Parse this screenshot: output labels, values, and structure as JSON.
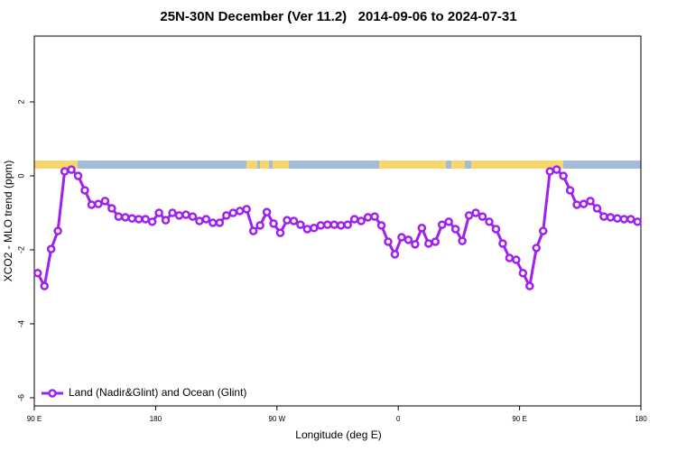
{
  "chart_data": {
    "type": "line",
    "title": "25N-30N December (Ver 11.2)   2014-09-06 to 2024-07-31",
    "x_label": "Longitude (deg E)",
    "y_label": "XCO2 - MLO trend (ppm)",
    "xlim": [
      90,
      540
    ],
    "ylim": [
      -6.22,
      3.78
    ],
    "xticks": [
      {
        "value": 90,
        "label": "90 E"
      },
      180,
      {
        "value": 270,
        "label": "90 W"
      },
      {
        "value": 360,
        "label": "0"
      },
      {
        "value": 450,
        "label": "90 E"
      },
      {
        "value": 540,
        "label": "180"
      }
    ],
    "yticks": [
      -6,
      -4,
      -2,
      0,
      2
    ],
    "legend": "bottom-left",
    "x": [
      92.5,
      97.5,
      102.5,
      107.5,
      112.5,
      117.5,
      122.5,
      127.5,
      132.5,
      137.5,
      142.5,
      147.5,
      152.5,
      157.5,
      162.5,
      167.5,
      172.5,
      177.5,
      182.5,
      187.5,
      192.5,
      197.5,
      202.5,
      207.5,
      212.5,
      217.5,
      222.5,
      227.5,
      232.5,
      237.5,
      242.5,
      247.5,
      252.5,
      257.5,
      262.5,
      267.5,
      272.5,
      277.5,
      282.5,
      287.5,
      292.5,
      297.5,
      302.5,
      307.5,
      312.5,
      317.5,
      322.5,
      327.5,
      332.5,
      337.5,
      342.5,
      347.5,
      352.5,
      357.5,
      362.5,
      367.5,
      372.5,
      377.5,
      382.5,
      387.5,
      392.5,
      397.5,
      402.5,
      407.5,
      412.5,
      417.5,
      422.5,
      427.5,
      432.5,
      437.5,
      442.5,
      447.5,
      452.5,
      457.5,
      462.5,
      467.5,
      472.5,
      477.5,
      482.5,
      487.5,
      492.5,
      497.5,
      502.5,
      507.5,
      512.5,
      517.5,
      522.5,
      527.5,
      532.5,
      537.5
    ],
    "series": [
      {
        "name": "Land (Nadir&Glint) and Ocean (Glint)",
        "color": "#a020f0",
        "values": [
          -2.63,
          -2.98,
          -1.98,
          -1.49,
          0.12,
          0.17,
          0,
          -0.39,
          -0.78,
          -0.76,
          -0.68,
          -0.88,
          -1.1,
          -1.12,
          -1.15,
          -1.17,
          -1.17,
          -1.24,
          -1.0,
          -1.2,
          -1.0,
          -1.07,
          -1.05,
          -1.1,
          -1.22,
          -1.17,
          -1.27,
          -1.27,
          -1.07,
          -1.0,
          -0.95,
          -0.9,
          -1.49,
          -1.34,
          -0.98,
          -1.29,
          -1.54,
          -1.2,
          -1.22,
          -1.32,
          -1.44,
          -1.41,
          -1.34,
          -1.32,
          -1.32,
          -1.34,
          -1.32,
          -1.17,
          -1.22,
          -1.12,
          -1.1,
          -1.34,
          -1.78,
          -2.12,
          -1.66,
          -1.73,
          -1.85,
          -1.41,
          -1.83,
          -1.78,
          -1.32,
          -1.24,
          -1.44,
          -1.76,
          -1.07,
          -1.0,
          -1.1,
          -1.24,
          -1.44,
          -1.83,
          -2.22,
          -2.27,
          -2.63,
          -2.98,
          -1.95,
          -1.49,
          0.12,
          0.17,
          0,
          -0.39,
          -0.78,
          -0.76,
          -0.68,
          -0.88,
          -1.1,
          -1.12,
          -1.15,
          -1.17,
          -1.17,
          -1.24
        ]
      }
    ]
  }
}
